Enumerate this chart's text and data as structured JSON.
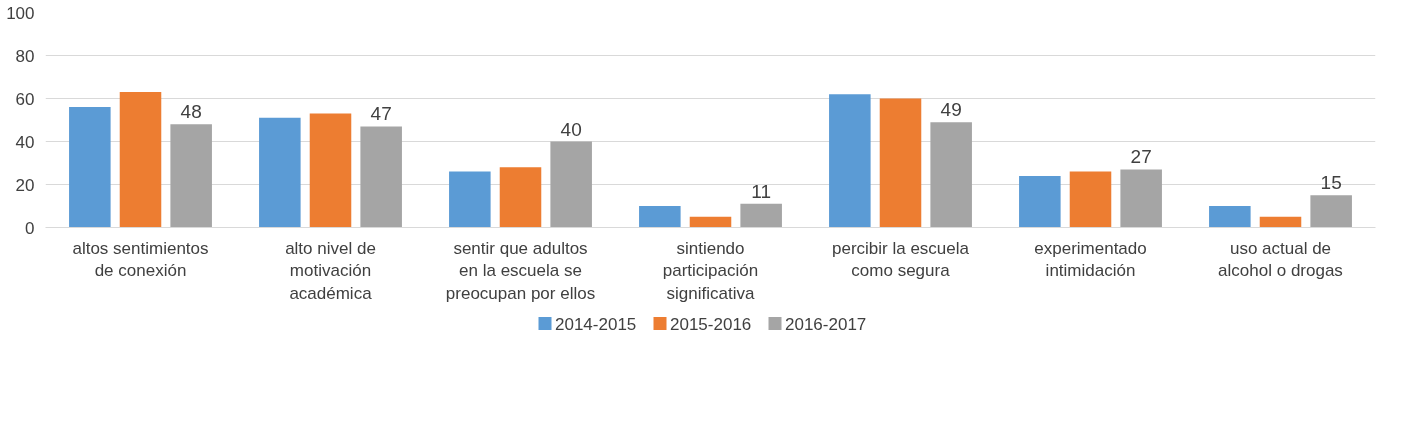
{
  "chart_data": {
    "type": "bar",
    "categories": [
      "altos sentimientos de conexión",
      "alto nivel de motivación académica",
      "sentir que adultos en la escuela se preocupan por ellos",
      "sintiendo participación significativa",
      "percibir la escuela como segura",
      "experimentado intimidación",
      "uso actual de alcohol o drogas"
    ],
    "series": [
      {
        "name": "2014-2015",
        "color": "#5b9bd5",
        "values": [
          56,
          51,
          26,
          10,
          62,
          24,
          10
        ]
      },
      {
        "name": "2015-2016",
        "color": "#ed7d31",
        "values": [
          63,
          53,
          28,
          5,
          60,
          26,
          5
        ]
      },
      {
        "name": "2016-2017",
        "color": "#a5a5a5",
        "values": [
          48,
          47,
          40,
          11,
          49,
          27,
          15
        ],
        "value_labels": [
          "48",
          "47",
          "40",
          "11",
          "49",
          "27",
          "15"
        ]
      }
    ],
    "ylim": [
      0,
      100
    ],
    "yticks": [
      0,
      20,
      40,
      60,
      80,
      100
    ],
    "grid": "y",
    "legend": "bottom"
  }
}
